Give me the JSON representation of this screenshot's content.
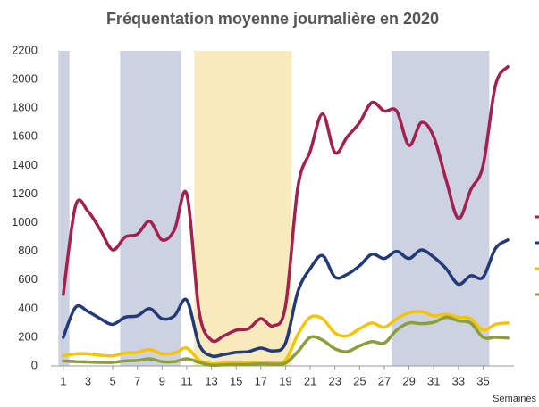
{
  "chart_data": {
    "type": "line",
    "title": "Fréquentation moyenne journalière en 2020",
    "x_label": "Semaines",
    "x": [
      1,
      2,
      3,
      4,
      5,
      6,
      7,
      8,
      9,
      10,
      11,
      12,
      13,
      14,
      15,
      16,
      17,
      18,
      19,
      20,
      21,
      22,
      23,
      24,
      25,
      26,
      27,
      28,
      29,
      30,
      31,
      32,
      33,
      34,
      35,
      36,
      37
    ],
    "xlim": [
      0,
      37.5
    ],
    "xticks": [
      1,
      3,
      5,
      7,
      9,
      11,
      13,
      15,
      17,
      19,
      21,
      23,
      25,
      27,
      29,
      31,
      33,
      35
    ],
    "ylim": [
      0,
      2200
    ],
    "yticks": [
      0,
      200,
      400,
      600,
      800,
      1000,
      1200,
      1400,
      1600,
      1800,
      2000,
      2200
    ],
    "grid": false,
    "bands": [
      {
        "x": [
          0.6,
          1.5
        ],
        "color": "#cdd2e3"
      },
      {
        "x": [
          5.6,
          10.5
        ],
        "color": "#cdd2e3"
      },
      {
        "x": [
          11.6,
          19.5
        ],
        "color": "#f7ebbd"
      },
      {
        "x": [
          27.6,
          35.5
        ],
        "color": "#cdd2e3"
      }
    ],
    "series": [
      {
        "color": "#a3204f",
        "values": [
          500,
          1120,
          1080,
          950,
          810,
          900,
          920,
          1010,
          880,
          950,
          1200,
          380,
          180,
          210,
          250,
          260,
          330,
          280,
          420,
          1250,
          1500,
          1760,
          1490,
          1600,
          1700,
          1840,
          1780,
          1780,
          1540,
          1700,
          1600,
          1300,
          1030,
          1230,
          1400,
          1960,
          2090
        ]
      },
      {
        "color": "#233a7a",
        "values": [
          200,
          410,
          380,
          330,
          290,
          340,
          350,
          400,
          330,
          350,
          460,
          150,
          70,
          80,
          95,
          100,
          125,
          105,
          160,
          520,
          680,
          770,
          620,
          640,
          700,
          780,
          750,
          800,
          750,
          810,
          760,
          680,
          570,
          630,
          620,
          820,
          880
        ]
      },
      {
        "color": "#f5c400",
        "values": [
          70,
          85,
          85,
          75,
          70,
          90,
          95,
          115,
          85,
          90,
          125,
          40,
          15,
          20,
          20,
          22,
          25,
          22,
          40,
          220,
          340,
          330,
          230,
          210,
          260,
          300,
          270,
          330,
          370,
          380,
          350,
          360,
          340,
          330,
          250,
          290,
          300
        ]
      },
      {
        "color": "#8a9e3a",
        "values": [
          35,
          30,
          28,
          25,
          25,
          35,
          38,
          50,
          30,
          30,
          50,
          25,
          5,
          8,
          10,
          10,
          15,
          12,
          20,
          100,
          200,
          180,
          120,
          100,
          140,
          170,
          160,
          250,
          300,
          295,
          305,
          340,
          315,
          300,
          200,
          200,
          195
        ]
      }
    ]
  }
}
